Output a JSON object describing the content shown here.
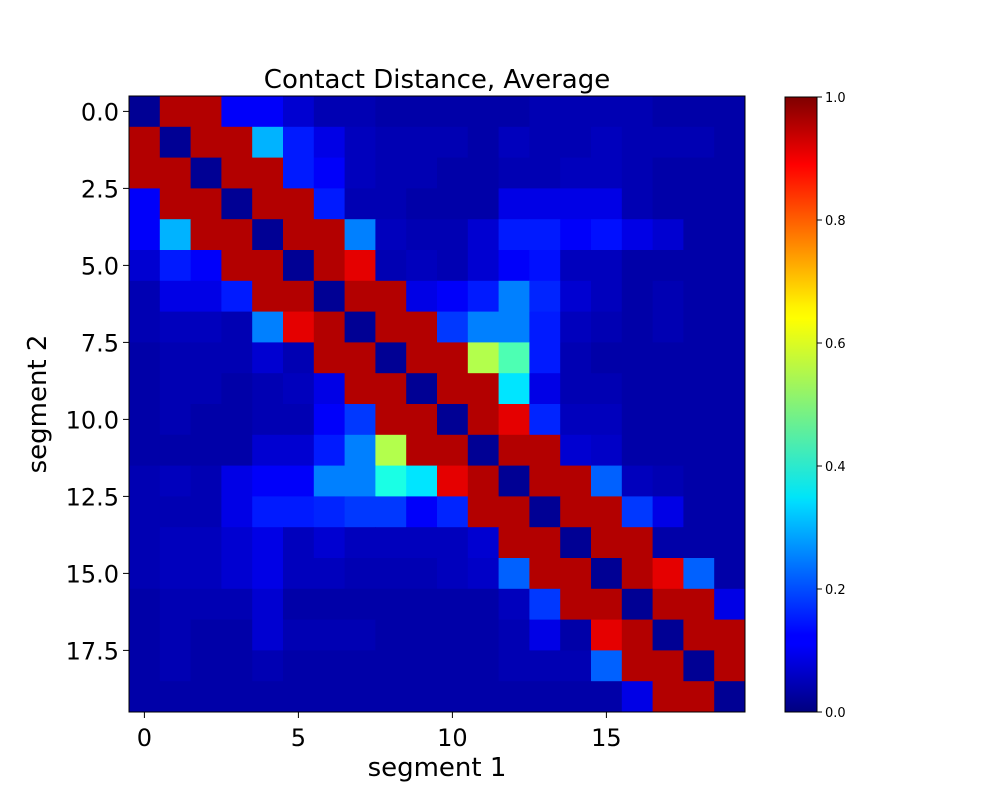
{
  "chart_data": {
    "type": "heatmap",
    "title": "Contact Distance, Average",
    "xlabel": "segment 1",
    "ylabel": "segment 2",
    "xlim": [
      -0.5,
      19.5
    ],
    "ylim": [
      19.5,
      -0.5
    ],
    "xticks": [
      0,
      5,
      10,
      15
    ],
    "xtick_labels": [
      "0",
      "5",
      "10",
      "15"
    ],
    "yticks": [
      0,
      2.5,
      5,
      7.5,
      10,
      12.5,
      15,
      17.5
    ],
    "ytick_labels": [
      "0.0",
      "2.5",
      "5.0",
      "7.5",
      "10.0",
      "12.5",
      "15.0",
      "17.5"
    ],
    "colormap": "jet",
    "colorbar": {
      "range": [
        0,
        1
      ],
      "ticks": [
        0,
        0.2,
        0.4,
        0.6,
        0.8,
        1.0
      ],
      "tick_labels": [
        "0.0",
        "0.2",
        "0.4",
        "0.6",
        "0.8",
        "1.0"
      ]
    },
    "grid": false,
    "values": [
      [
        0.02,
        0.95,
        0.95,
        0.12,
        0.12,
        0.08,
        0.05,
        0.05,
        0.04,
        0.04,
        0.04,
        0.04,
        0.04,
        0.05,
        0.05,
        0.05,
        0.05,
        0.04,
        0.04,
        0.04
      ],
      [
        0.95,
        0.02,
        0.95,
        0.95,
        0.3,
        0.15,
        0.1,
        0.06,
        0.05,
        0.05,
        0.05,
        0.04,
        0.06,
        0.05,
        0.05,
        0.06,
        0.05,
        0.05,
        0.05,
        0.04
      ],
      [
        0.95,
        0.95,
        0.02,
        0.95,
        0.95,
        0.15,
        0.12,
        0.06,
        0.05,
        0.05,
        0.04,
        0.04,
        0.05,
        0.05,
        0.06,
        0.06,
        0.05,
        0.04,
        0.04,
        0.04
      ],
      [
        0.12,
        0.95,
        0.95,
        0.02,
        0.95,
        0.95,
        0.15,
        0.05,
        0.05,
        0.04,
        0.04,
        0.04,
        0.1,
        0.1,
        0.1,
        0.1,
        0.05,
        0.04,
        0.04,
        0.04
      ],
      [
        0.12,
        0.3,
        0.95,
        0.95,
        0.02,
        0.95,
        0.95,
        0.25,
        0.06,
        0.05,
        0.05,
        0.08,
        0.15,
        0.15,
        0.12,
        0.14,
        0.1,
        0.08,
        0.04,
        0.04
      ],
      [
        0.08,
        0.15,
        0.12,
        0.95,
        0.95,
        0.02,
        0.95,
        0.9,
        0.05,
        0.06,
        0.05,
        0.08,
        0.12,
        0.14,
        0.06,
        0.06,
        0.04,
        0.04,
        0.04,
        0.04
      ],
      [
        0.05,
        0.1,
        0.1,
        0.15,
        0.95,
        0.95,
        0.02,
        0.95,
        0.95,
        0.1,
        0.12,
        0.15,
        0.25,
        0.16,
        0.08,
        0.06,
        0.04,
        0.05,
        0.04,
        0.04
      ],
      [
        0.05,
        0.06,
        0.06,
        0.05,
        0.25,
        0.9,
        0.95,
        0.02,
        0.95,
        0.95,
        0.18,
        0.25,
        0.25,
        0.15,
        0.06,
        0.05,
        0.04,
        0.05,
        0.04,
        0.04
      ],
      [
        0.04,
        0.05,
        0.05,
        0.05,
        0.08,
        0.05,
        0.95,
        0.95,
        0.02,
        0.95,
        0.95,
        0.55,
        0.45,
        0.15,
        0.05,
        0.04,
        0.04,
        0.04,
        0.04,
        0.04
      ],
      [
        0.04,
        0.05,
        0.05,
        0.04,
        0.05,
        0.06,
        0.1,
        0.95,
        0.95,
        0.02,
        0.95,
        0.95,
        0.35,
        0.1,
        0.05,
        0.05,
        0.04,
        0.04,
        0.04,
        0.04
      ],
      [
        0.04,
        0.05,
        0.04,
        0.04,
        0.05,
        0.05,
        0.12,
        0.18,
        0.95,
        0.95,
        0.02,
        0.95,
        0.9,
        0.16,
        0.06,
        0.06,
        0.04,
        0.04,
        0.04,
        0.04
      ],
      [
        0.04,
        0.04,
        0.04,
        0.04,
        0.08,
        0.08,
        0.15,
        0.25,
        0.55,
        0.95,
        0.95,
        0.02,
        0.95,
        0.95,
        0.08,
        0.07,
        0.04,
        0.04,
        0.04,
        0.04
      ],
      [
        0.05,
        0.06,
        0.05,
        0.1,
        0.12,
        0.12,
        0.25,
        0.25,
        0.4,
        0.35,
        0.9,
        0.95,
        0.02,
        0.95,
        0.95,
        0.22,
        0.06,
        0.05,
        0.04,
        0.04
      ],
      [
        0.05,
        0.05,
        0.05,
        0.1,
        0.15,
        0.15,
        0.16,
        0.18,
        0.18,
        0.12,
        0.16,
        0.95,
        0.95,
        0.02,
        0.95,
        0.95,
        0.18,
        0.1,
        0.04,
        0.04
      ],
      [
        0.05,
        0.06,
        0.06,
        0.08,
        0.1,
        0.06,
        0.08,
        0.06,
        0.06,
        0.06,
        0.06,
        0.08,
        0.95,
        0.95,
        0.02,
        0.95,
        0.95,
        0.04,
        0.04,
        0.04
      ],
      [
        0.05,
        0.06,
        0.06,
        0.08,
        0.1,
        0.06,
        0.06,
        0.05,
        0.05,
        0.05,
        0.06,
        0.07,
        0.22,
        0.95,
        0.95,
        0.02,
        0.95,
        0.9,
        0.22,
        0.04
      ],
      [
        0.04,
        0.05,
        0.05,
        0.05,
        0.08,
        0.04,
        0.04,
        0.04,
        0.04,
        0.04,
        0.04,
        0.04,
        0.06,
        0.18,
        0.95,
        0.95,
        0.02,
        0.95,
        0.95,
        0.1
      ],
      [
        0.04,
        0.05,
        0.04,
        0.04,
        0.08,
        0.05,
        0.05,
        0.05,
        0.04,
        0.04,
        0.04,
        0.04,
        0.05,
        0.1,
        0.04,
        0.9,
        0.95,
        0.02,
        0.95,
        0.95
      ],
      [
        0.04,
        0.05,
        0.04,
        0.04,
        0.05,
        0.04,
        0.04,
        0.04,
        0.04,
        0.04,
        0.04,
        0.04,
        0.05,
        0.05,
        0.05,
        0.22,
        0.95,
        0.95,
        0.02,
        0.95
      ],
      [
        0.04,
        0.04,
        0.04,
        0.04,
        0.04,
        0.04,
        0.04,
        0.04,
        0.04,
        0.04,
        0.04,
        0.04,
        0.04,
        0.04,
        0.04,
        0.04,
        0.1,
        0.95,
        0.95,
        0.02
      ]
    ]
  }
}
